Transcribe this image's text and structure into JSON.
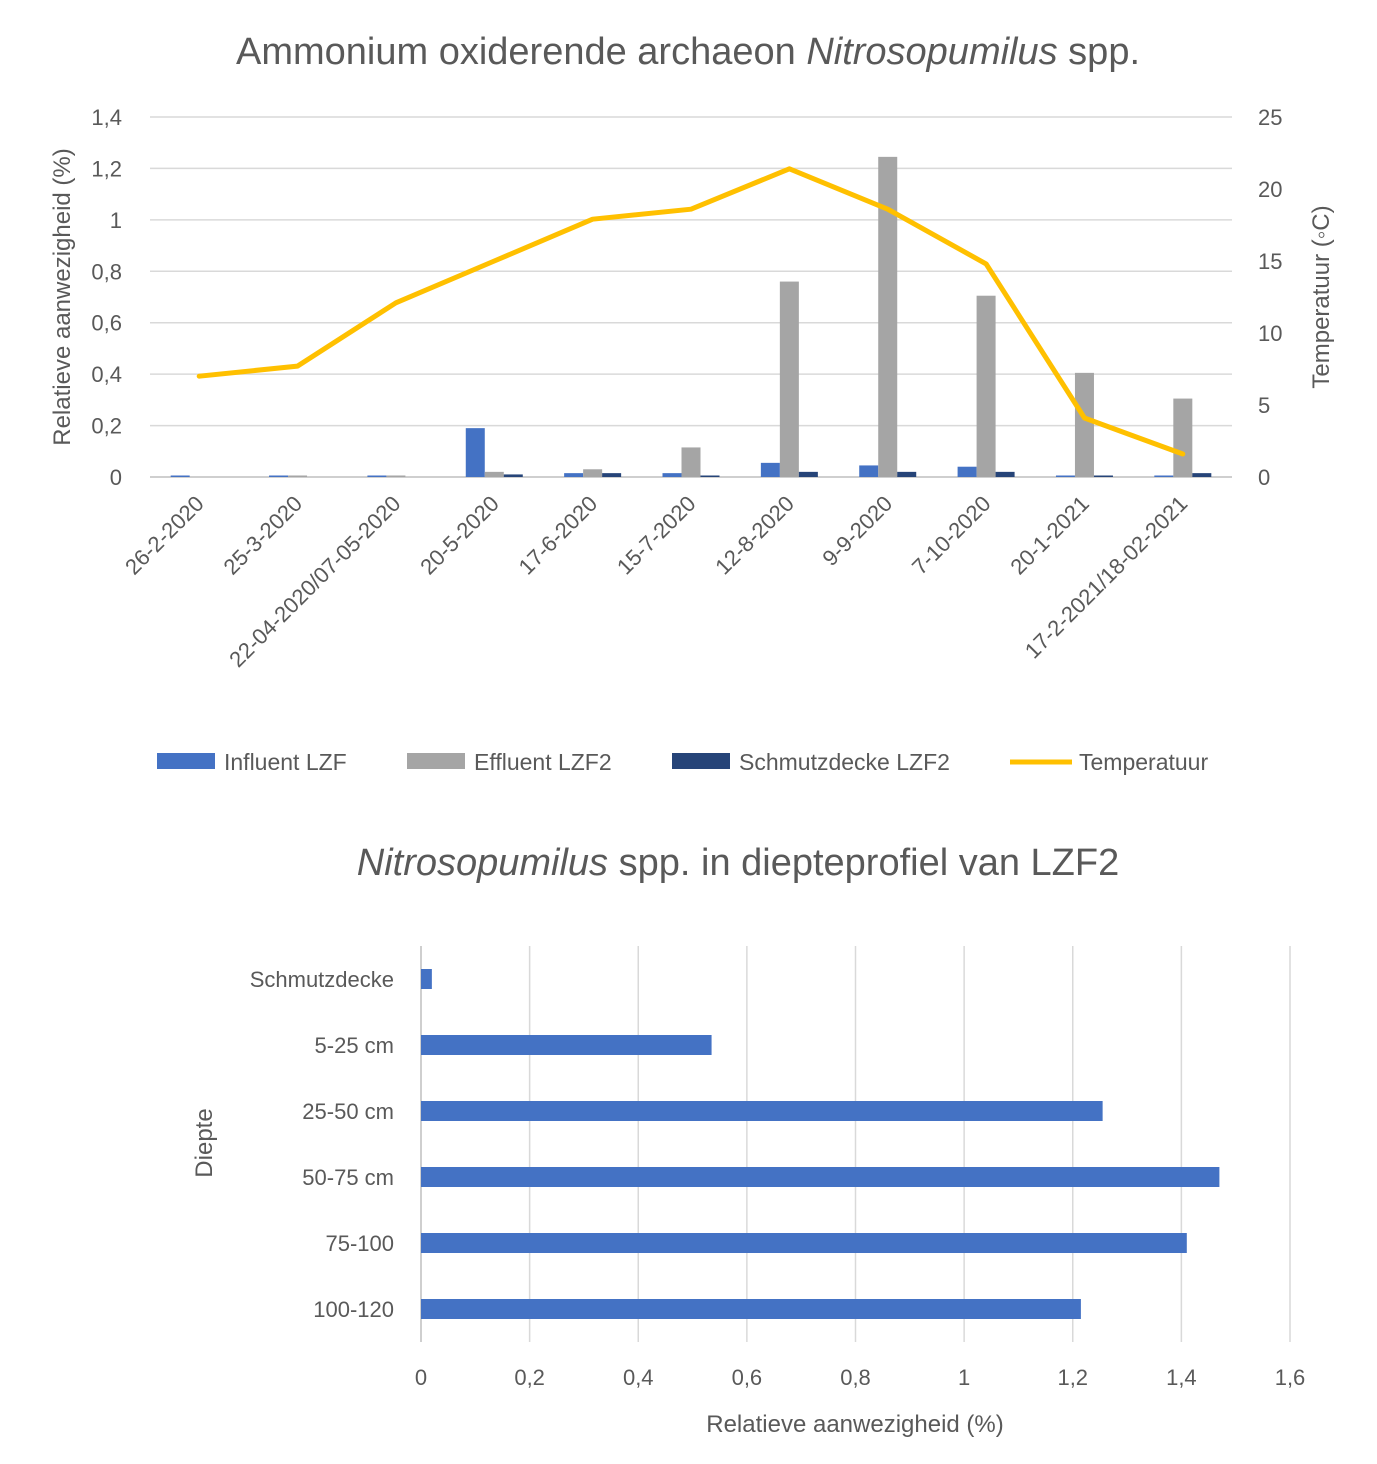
{
  "chart_data": [
    {
      "type": "bar",
      "title": "Ammonium oxiderende archaeon",
      "title_italic": "Nitrosopumilus",
      "title_suffix": " spp.",
      "categories": [
        "26-2-2020",
        "25-3-2020",
        "22-04-2020/07-05-2020",
        "20-5-2020",
        "17-6-2020",
        "15-7-2020",
        "12-8-2020",
        "9-9-2020",
        "7-10-2020",
        "20-1-2021",
        "17-2-2021/18-02-2021"
      ],
      "ylabel": "Relatieve aanwezigheid (%)",
      "y2label": "Temperatuur (◦C)",
      "ylim": [
        0,
        1.4
      ],
      "y2lim": [
        0,
        25
      ],
      "yticks": [
        "0",
        "0,2",
        "0,4",
        "0,6",
        "0,8",
        "1",
        "1,2",
        "1,4"
      ],
      "y2ticks": [
        "0",
        "5",
        "10",
        "15",
        "20",
        "25"
      ],
      "grid": true,
      "legend_position": "bottom",
      "series": [
        {
          "name": "Influent LZF",
          "kind": "bar",
          "color": "#4472c4",
          "values": [
            0.005,
            0.003,
            0.005,
            0.19,
            0.015,
            0.015,
            0.055,
            0.045,
            0.04,
            0.005,
            0.005
          ]
        },
        {
          "name": "Effluent LZF2",
          "kind": "bar",
          "color": "#a5a5a5",
          "values": [
            0,
            0.003,
            0.005,
            0.02,
            0.03,
            0.115,
            0.76,
            1.245,
            0.705,
            0.405,
            0.305
          ]
        },
        {
          "name": "Schmutzdecke LZF2",
          "kind": "bar",
          "color": "#264478",
          "values": [
            0,
            0,
            0,
            0.01,
            0.015,
            0.005,
            0.02,
            0.02,
            0.02,
            0.003,
            0.015
          ]
        },
        {
          "name": "Temperatuur",
          "kind": "line",
          "axis": "right",
          "color": "#ffc000",
          "values": [
            7,
            7.7,
            12.1,
            15,
            17.9,
            18.6,
            21.4,
            18.6,
            14.8,
            4.1,
            1.6
          ]
        }
      ]
    },
    {
      "type": "bar",
      "orientation": "horizontal",
      "title_italic": "Nitrosopumilus",
      "title_suffix": " spp. in diepteprofiel van LZF2",
      "categories": [
        "Schmutzdecke",
        "5-25 cm",
        "25-50 cm",
        "50-75 cm",
        "75-100",
        "100-120"
      ],
      "values": [
        0.02,
        0.535,
        1.255,
        1.47,
        1.41,
        1.215
      ],
      "xlabel": "Relatieve aanwezigheid (%)",
      "ylabel": "Diepte",
      "xlim": [
        0,
        1.6
      ],
      "xticks": [
        "0",
        "0,2",
        "0,4",
        "0,6",
        "0,8",
        "1",
        "1,2",
        "1,4",
        "1,6"
      ],
      "grid": true,
      "color": "#4472c4"
    }
  ]
}
